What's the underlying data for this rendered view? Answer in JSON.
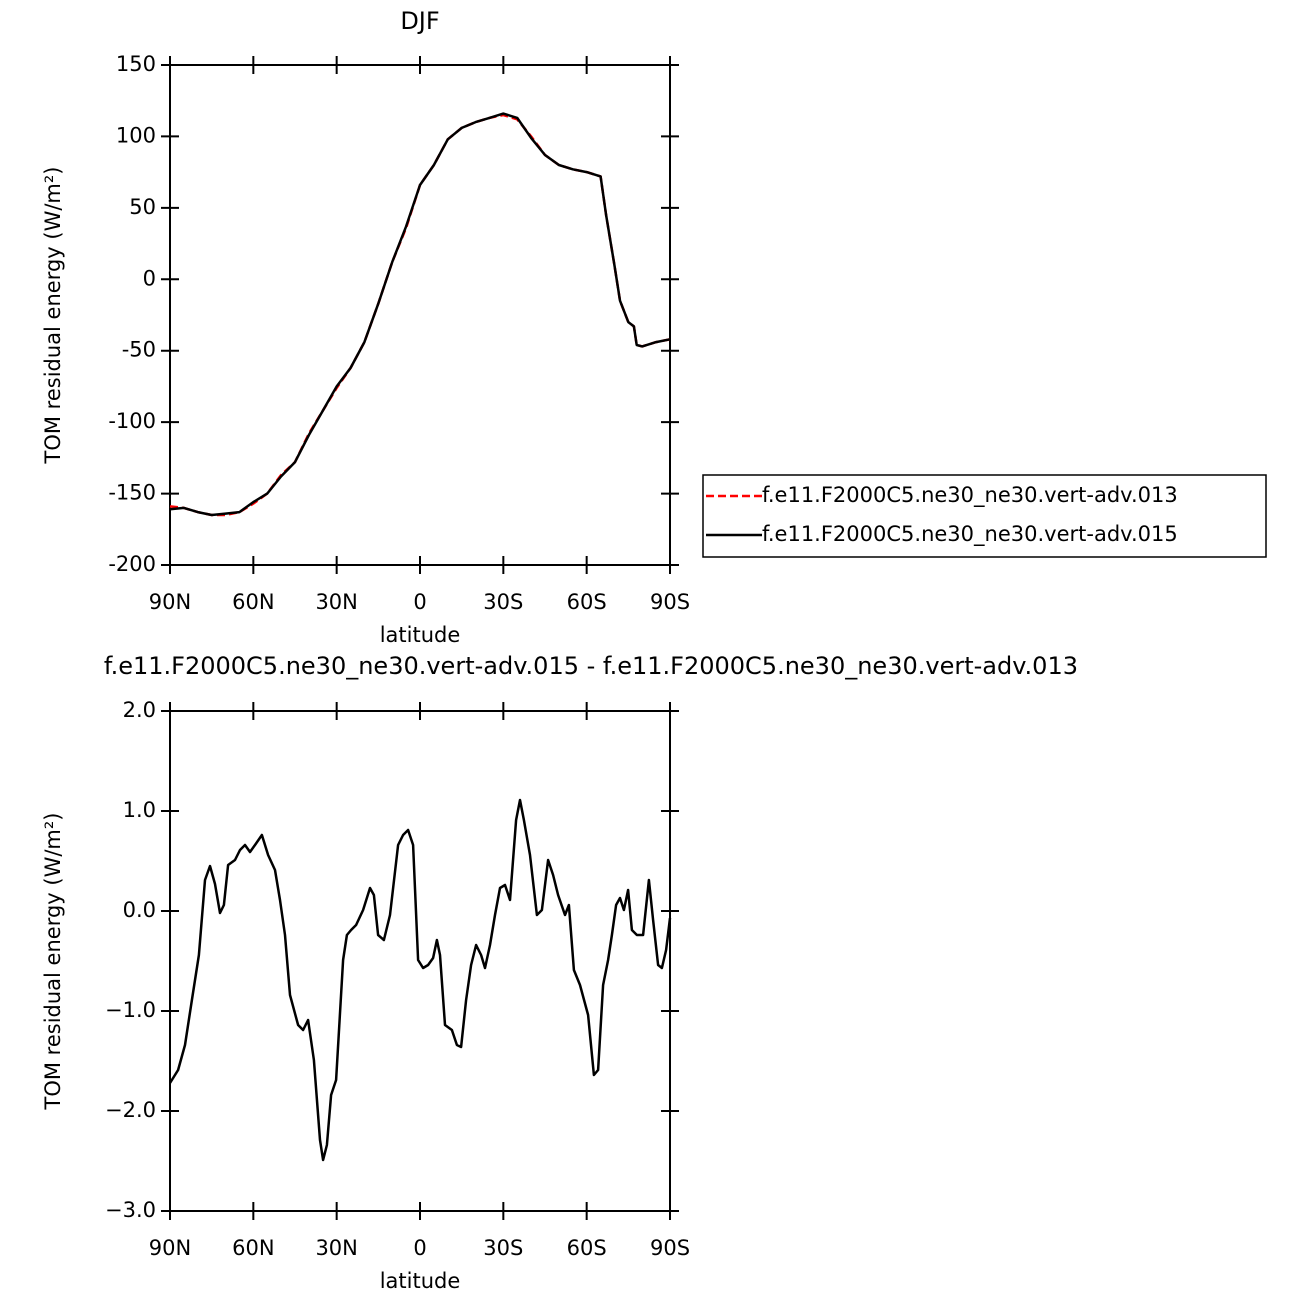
{
  "chart_data": [
    {
      "type": "line",
      "title": "DJF",
      "xlabel": "latitude",
      "ylabel": "TOM residual energy (W/m²)",
      "x": [
        90,
        85,
        80,
        75,
        70,
        65,
        60,
        55,
        50,
        45,
        40,
        35,
        30,
        25,
        20,
        15,
        10,
        5,
        0,
        -5,
        -10,
        -15,
        -20,
        -25,
        -30,
        -35,
        -40,
        -45,
        -50,
        -55,
        -60,
        -65,
        -67,
        -70,
        -72,
        -75,
        -77,
        -78,
        -80,
        -85,
        -90
      ],
      "series": [
        {
          "name": "f.e11.F2000C5.ne30_ne30.vert-adv.013",
          "color": "#ff0000",
          "linestyle": "dashed",
          "values": [
            -159,
            -160,
            -163,
            -165,
            -165,
            -163,
            -157,
            -150,
            -137,
            -128,
            -108,
            -92,
            -76,
            -62,
            -44,
            -17,
            12,
            36,
            66,
            80,
            98,
            106,
            110,
            113,
            115,
            112,
            100,
            87,
            80,
            77,
            75,
            72,
            45,
            10,
            -15,
            -30,
            -33,
            -46,
            -47,
            -44,
            -42
          ]
        },
        {
          "name": "f.e11.F2000C5.ne30_ne30.vert-adv.015",
          "color": "#000000",
          "linestyle": "solid",
          "values": [
            -161,
            -160,
            -163,
            -165,
            -164,
            -163,
            -156,
            -150,
            -138,
            -128,
            -109,
            -92,
            -75,
            -62,
            -44,
            -17,
            12,
            37,
            66,
            80,
            98,
            106,
            110,
            113,
            116,
            113,
            99,
            87,
            80,
            77,
            75,
            72,
            45,
            10,
            -15,
            -30,
            -33,
            -46,
            -47,
            -44,
            -42
          ]
        }
      ],
      "xlim": [
        90,
        -90
      ],
      "xticks": [
        {
          "value": 90,
          "label": "90N"
        },
        {
          "value": 60,
          "label": "60N"
        },
        {
          "value": 30,
          "label": "30N"
        },
        0,
        {
          "value": -30,
          "label": "30S"
        },
        {
          "value": -60,
          "label": "60S"
        },
        {
          "value": -90,
          "label": "90S"
        }
      ],
      "ylim": [
        -200,
        150
      ],
      "yticks": [
        -200,
        -150,
        -100,
        -50,
        0,
        50,
        100,
        150
      ],
      "legend": "right"
    },
    {
      "type": "line",
      "title": "f.e11.F2000C5.ne30_ne30.vert-adv.015 - f.e11.F2000C5.ne30_ne30.vert-adv.013",
      "xlabel": "latitude",
      "ylabel": "TOM residual energy (W/m²)",
      "x": [
        90,
        87.1,
        84.6,
        82.1,
        79.6,
        77.4,
        75.6,
        73.8,
        72,
        70.6,
        69.1,
        66.6,
        64.8,
        63,
        61.2,
        59.4,
        56.9,
        54.7,
        52.2,
        50.4,
        48.6,
        46.8,
        43.9,
        42.1,
        40.3,
        38.2,
        36,
        34.9,
        33.5,
        32,
        30.2,
        27.7,
        26.3,
        24.8,
        23,
        20.5,
        18,
        16.6,
        15.1,
        13,
        10.8,
        7.9,
        6.1,
        4.3,
        2.5,
        0.7,
        -1.1,
        -2.9,
        -4.7,
        -6.1,
        -7.2,
        -9,
        -11.5,
        -13.3,
        -14.8,
        -16.6,
        -18.4,
        -20.2,
        -22,
        -23.4,
        -25.2,
        -27,
        -28.8,
        -30.6,
        -32.4,
        -34.6,
        -36,
        -37.4,
        -39.6,
        -42.1,
        -43.9,
        -46.1,
        -47.9,
        -49.7,
        -52.2,
        -53.6,
        -55.4,
        -57.6,
        -60.5,
        -62.6,
        -64.1,
        -65.9,
        -67.7,
        -69.1,
        -70.6,
        -72,
        -73.4,
        -74.9,
        -76.3,
        -78.1,
        -80.3,
        -82.4,
        -83.9,
        -85.7,
        -87.1,
        -88.6,
        -90
      ],
      "values": [
        -1.72,
        -1.59,
        -1.34,
        -0.89,
        -0.44,
        0.31,
        0.45,
        0.27,
        -0.02,
        0.06,
        0.46,
        0.51,
        0.61,
        0.66,
        0.59,
        0.66,
        0.76,
        0.56,
        0.41,
        0.11,
        -0.24,
        -0.84,
        -1.14,
        -1.19,
        -1.09,
        -1.49,
        -2.29,
        -2.49,
        -2.34,
        -1.84,
        -1.69,
        -0.49,
        -0.24,
        -0.19,
        -0.14,
        0.01,
        0.23,
        0.16,
        -0.24,
        -0.29,
        -0.04,
        0.66,
        0.76,
        0.81,
        0.66,
        -0.49,
        -0.57,
        -0.54,
        -0.47,
        -0.29,
        -0.44,
        -1.14,
        -1.19,
        -1.34,
        -1.36,
        -0.89,
        -0.54,
        -0.34,
        -0.44,
        -0.57,
        -0.34,
        -0.04,
        0.23,
        0.26,
        0.11,
        0.91,
        1.11,
        0.91,
        0.56,
        -0.04,
        0.01,
        0.51,
        0.36,
        0.16,
        -0.04,
        0.06,
        -0.59,
        -0.74,
        -1.04,
        -1.64,
        -1.59,
        -0.74,
        -0.49,
        -0.24,
        0.06,
        0.13,
        0.01,
        0.21,
        -0.19,
        -0.24,
        -0.24,
        0.31,
        -0.09,
        -0.54,
        -0.57,
        -0.39,
        -0.07
      ],
      "color": "#000000",
      "linestyle": "solid",
      "xlim": [
        90,
        -90
      ],
      "xticks": [
        {
          "value": 90,
          "label": "90N"
        },
        {
          "value": 60,
          "label": "60N"
        },
        {
          "value": 30,
          "label": "30N"
        },
        0,
        {
          "value": -30,
          "label": "30S"
        },
        {
          "value": -60,
          "label": "60S"
        },
        {
          "value": -90,
          "label": "90S"
        }
      ],
      "ylim": [
        -3,
        2
      ],
      "yticks": [
        {
          "value": -3,
          "label": "−3.0"
        },
        {
          "value": -2,
          "label": "−2.0"
        },
        {
          "value": -1,
          "label": "−1.0"
        },
        {
          "value": 0,
          "label": "0.0"
        },
        {
          "value": 1,
          "label": "1.0"
        },
        {
          "value": 2,
          "label": "2.0"
        }
      ]
    }
  ]
}
